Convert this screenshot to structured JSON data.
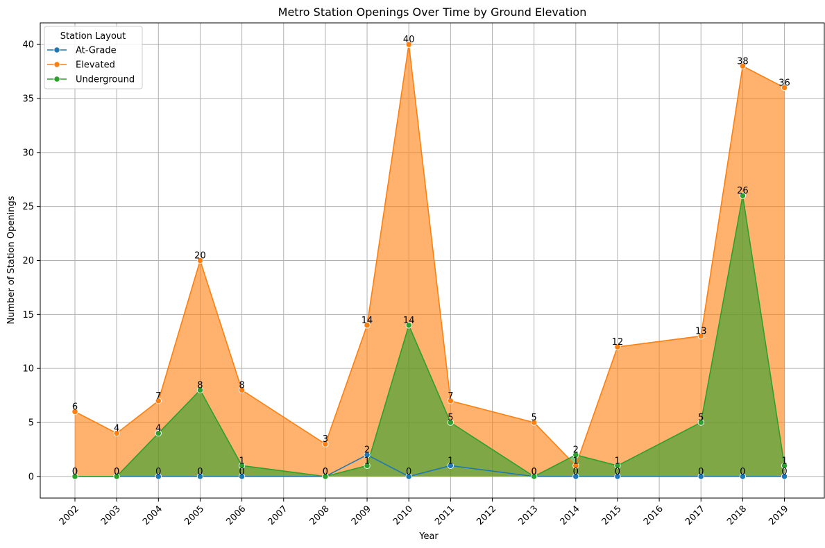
{
  "chart_data": {
    "type": "area",
    "title": "Metro Station Openings Over Time by Ground Elevation",
    "xlabel": "Year",
    "ylabel": "Number of Station Openings",
    "x_tick_labels": [
      "2002",
      "2003",
      "2004",
      "2005",
      "2006",
      "2007",
      "2008",
      "2009",
      "2010",
      "2011",
      "2012",
      "2013",
      "2014",
      "2015",
      "2016",
      "2017",
      "2018",
      "2019"
    ],
    "y_ticks": [
      0,
      5,
      10,
      15,
      20,
      25,
      30,
      35,
      40
    ],
    "ylim": [
      -2,
      42
    ],
    "grid": true,
    "legend": {
      "title": "Station Layout",
      "placement": "top-left"
    },
    "series": [
      {
        "name": "At-Grade",
        "color": "#1f77b4",
        "fill_opacity": 0.0,
        "x": [
          2002,
          2003,
          2004,
          2005,
          2006,
          2008,
          2009,
          2010,
          2011,
          2013,
          2014,
          2015,
          2017,
          2018,
          2019
        ],
        "values": [
          0,
          0,
          0,
          0,
          0,
          0,
          2,
          0,
          1,
          0,
          0,
          0,
          0,
          0,
          0
        ]
      },
      {
        "name": "Elevated",
        "color": "#ff7f0e",
        "fill_opacity": 0.6,
        "x": [
          2002,
          2003,
          2004,
          2005,
          2006,
          2008,
          2009,
          2010,
          2011,
          2013,
          2014,
          2015,
          2017,
          2018,
          2019
        ],
        "values": [
          6,
          4,
          7,
          20,
          8,
          3,
          14,
          40,
          7,
          5,
          1,
          12,
          13,
          38,
          36
        ]
      },
      {
        "name": "Underground",
        "color": "#2ca02c",
        "fill_opacity": 0.6,
        "x": [
          2002,
          2003,
          2004,
          2005,
          2006,
          2008,
          2009,
          2010,
          2011,
          2013,
          2014,
          2015,
          2017,
          2018,
          2019
        ],
        "values": [
          0,
          0,
          4,
          8,
          1,
          0,
          1,
          14,
          5,
          0,
          2,
          1,
          5,
          26,
          1
        ]
      }
    ]
  }
}
